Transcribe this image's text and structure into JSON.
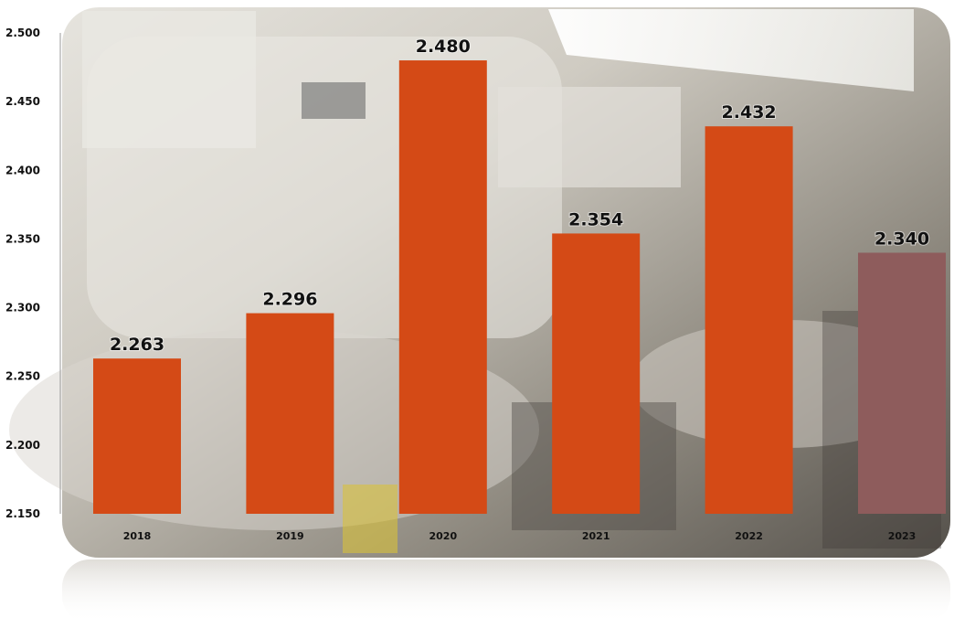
{
  "chart_data": {
    "type": "bar",
    "categories": [
      "2018",
      "2019",
      "2020",
      "2021",
      "2022",
      "2023"
    ],
    "values": [
      2.263,
      2.296,
      2.48,
      2.354,
      2.432,
      2.34
    ],
    "value_labels": [
      "2.263",
      "2.296",
      "2.480",
      "2.354",
      "2.432",
      "2.340"
    ],
    "y_ticks": [
      "2.150",
      "2.200",
      "2.250",
      "2.300",
      "2.350",
      "2.400",
      "2.450",
      "2.500"
    ],
    "ylim": [
      2.15,
      2.5
    ],
    "title": "",
    "xlabel": "",
    "ylabel": "",
    "grid": false,
    "legend": "none",
    "bar_colors": [
      "#d44a16",
      "#d44a16",
      "#d44a16",
      "#d44a16",
      "#d44a16",
      "#8e5c5c"
    ],
    "background": "photo of industrial machinery with reflection"
  }
}
